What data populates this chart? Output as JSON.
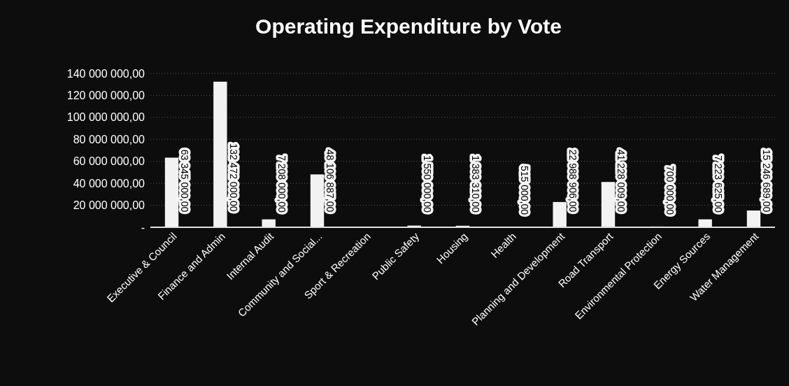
{
  "chart_data": {
    "type": "bar",
    "title": "Operating Expenditure by Vote",
    "categories": [
      "Executive & Council",
      "Finance and Admin",
      "Internal Audit",
      "Community and Social...",
      "Sport & Recreation",
      "Public Safety",
      "Housing",
      "Health",
      "Planning and Development",
      "Road Transport",
      "Environmental Protection",
      "Energy Sources",
      "Water Management"
    ],
    "values": [
      63345000,
      132472000,
      7208000,
      48106887,
      null,
      1550000,
      1383310,
      515000,
      22988906,
      41228009,
      700000,
      7223625,
      15246689
    ],
    "value_labels": [
      "63 345 000,00",
      "132 472 000,00",
      "7 208 000,00",
      "48 106 887,00",
      null,
      "1 550 000,00",
      "1 383 310,00",
      "515 000,00",
      "22 988 906,00",
      "41 228 009,00",
      "700 000,00",
      "7 223 625,00",
      "15 246 689,00"
    ],
    "color": "#f2f2f2",
    "ylim": [
      0,
      140000000
    ],
    "yticks": [
      {
        "value": 0,
        "label": "-"
      },
      {
        "value": 20000000,
        "label": "20 000 000,00"
      },
      {
        "value": 40000000,
        "label": "40 000 000,00"
      },
      {
        "value": 60000000,
        "label": "60 000 000,00"
      },
      {
        "value": 80000000,
        "label": "80 000 000,00"
      },
      {
        "value": 100000000,
        "label": "100 000 000,00"
      },
      {
        "value": 120000000,
        "label": "120 000 000,00"
      },
      {
        "value": 140000000,
        "label": "140 000 000,00"
      }
    ],
    "grid": "y"
  }
}
